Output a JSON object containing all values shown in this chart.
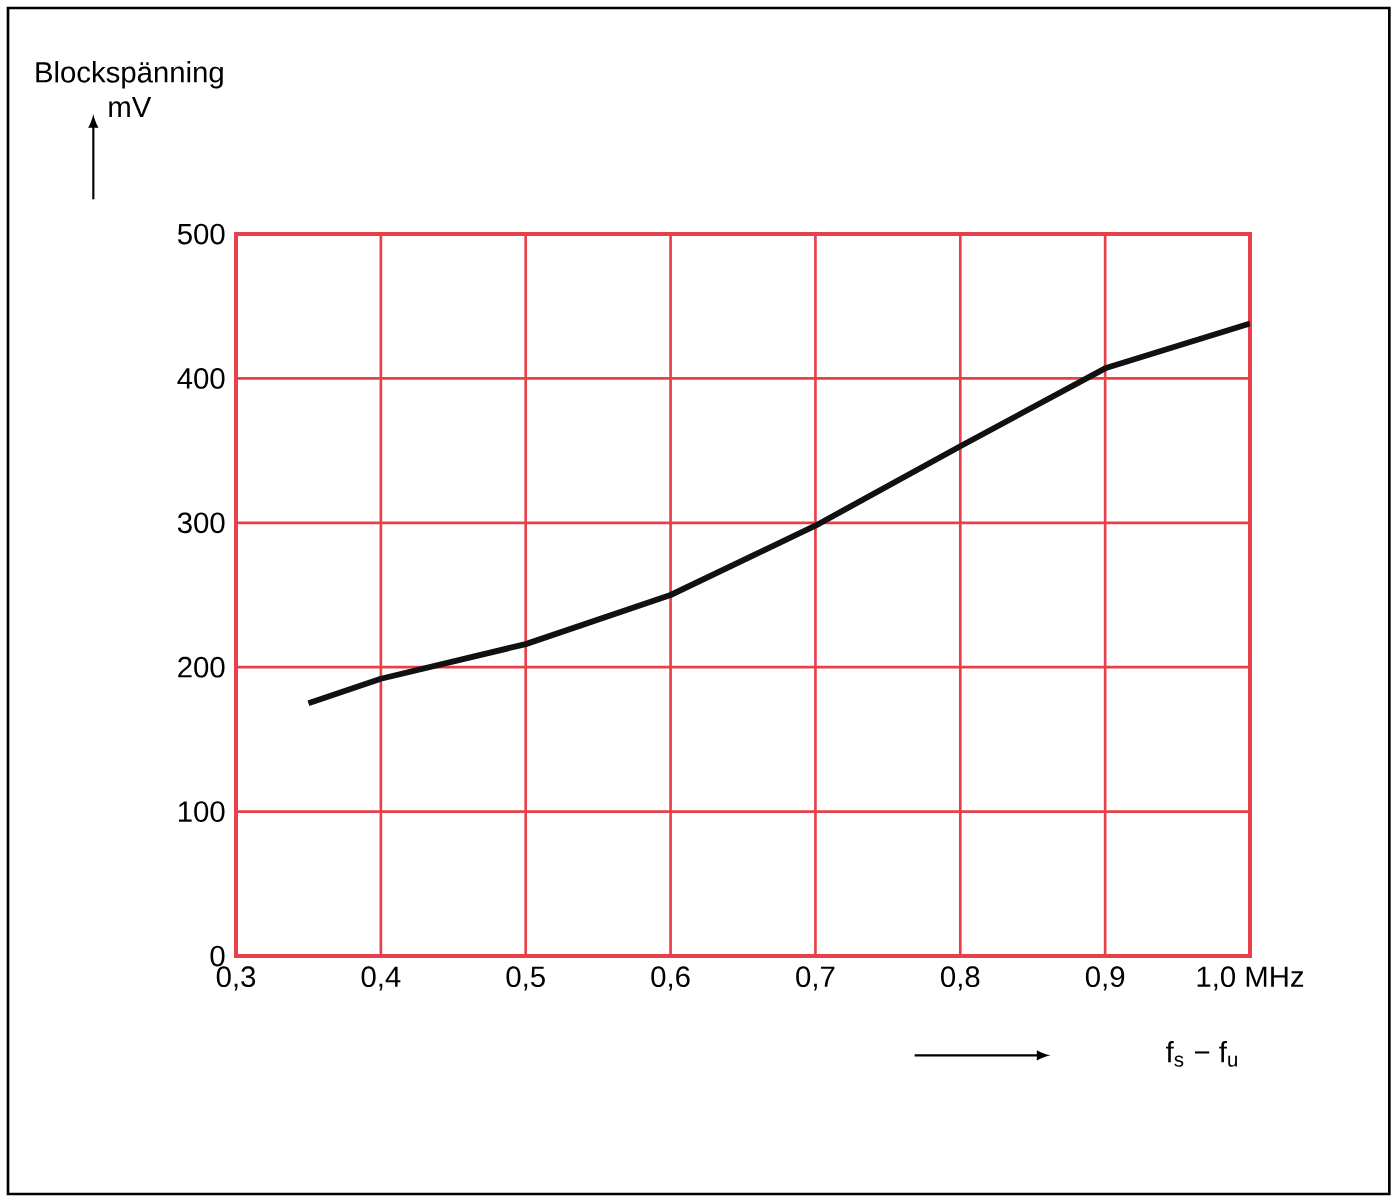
{
  "chart_data": {
    "type": "line",
    "xlabel": "f$_{s}$ − f$_{u}$",
    "ylabel": "Blockspänning mV",
    "x": [
      0.35,
      0.4,
      0.5,
      0.6,
      0.7,
      0.8,
      0.9,
      1.0
    ],
    "series": [
      {
        "color": "#111111",
        "values": [
          175,
          192,
          216,
          250,
          298,
          353,
          407,
          438
        ]
      }
    ],
    "xlim": [
      0.3,
      1.0
    ],
    "ylim": [
      0,
      500
    ],
    "xticks": [
      {
        "value": 0.3,
        "label": "0,3"
      },
      {
        "value": 0.4,
        "label": "0,4"
      },
      {
        "value": 0.5,
        "label": "0,5"
      },
      {
        "value": 0.6,
        "label": "0,6"
      },
      {
        "value": 0.7,
        "label": "0,7"
      },
      {
        "value": 0.8,
        "label": "0,8"
      },
      {
        "value": 0.9,
        "label": "0,9"
      },
      {
        "value": 1.0,
        "label": "1,0 MHz"
      }
    ],
    "yticks": [
      0,
      100,
      200,
      300,
      400,
      500
    ],
    "grid": true,
    "marker": "none",
    "line_style": "solid"
  }
}
